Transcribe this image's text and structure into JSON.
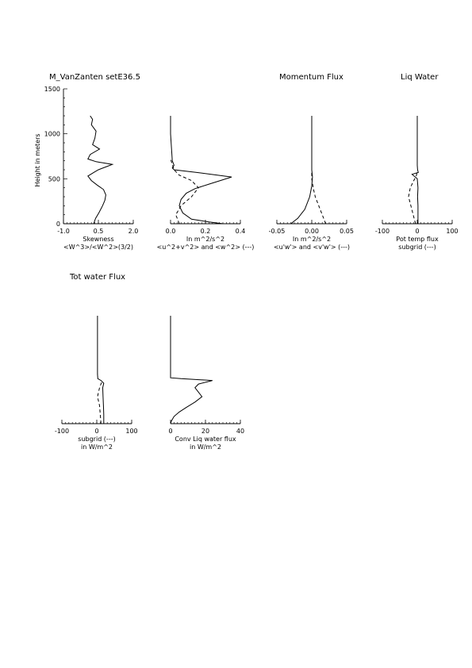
{
  "page": {
    "header_title": "M_VanZanten setE36.5"
  },
  "chart_data": [
    {
      "type": "line",
      "panel": "skewness",
      "title": "",
      "xlabel": "Skewness",
      "xlabel2": "<W^3>/<W^2>(3/2)",
      "ylabel": "Height in meters",
      "xlim": [
        -1.0,
        2.0
      ],
      "ylim": [
        0,
        1500
      ],
      "xticks": [
        "-1.0",
        "0.5",
        "2.0"
      ],
      "yticks": [
        "0",
        "500",
        "1000",
        "1500"
      ],
      "series": [
        {
          "style": "solid",
          "x": [
            0.3,
            0.38,
            0.52,
            0.68,
            0.78,
            0.82,
            0.72,
            0.45,
            0.2,
            0.05,
            0.3,
            0.5,
            0.9,
            1.1,
            0.4,
            0.05,
            0.15,
            0.55,
            0.25,
            0.35,
            0.4,
            0.2,
            0.25,
            0.15
          ],
          "y": [
            0,
            60,
            120,
            200,
            260,
            320,
            380,
            430,
            480,
            530,
            570,
            600,
            640,
            660,
            690,
            720,
            770,
            830,
            880,
            950,
            1030,
            1100,
            1160,
            1200
          ]
        }
      ]
    },
    {
      "type": "line",
      "panel": "velocity-variance",
      "title": "",
      "xlabel": "In m^2/s^2",
      "xlabel2": "<u^2+v^2> and <w^2> (---)",
      "xlim": [
        0.0,
        0.4
      ],
      "ylim": [
        0,
        1500
      ],
      "xticks": [
        "0.0",
        "0.2",
        "0.4"
      ],
      "series": [
        {
          "style": "solid",
          "x": [
            0.3,
            0.22,
            0.12,
            0.07,
            0.05,
            0.06,
            0.09,
            0.14,
            0.22,
            0.35,
            0.15,
            0.02,
            0.01,
            0.02,
            0.01,
            0.0,
            0.0
          ],
          "y": [
            0,
            20,
            50,
            120,
            200,
            270,
            340,
            390,
            440,
            520,
            570,
            600,
            620,
            650,
            700,
            1000,
            1200
          ]
        },
        {
          "style": "dashed",
          "x": [
            0.05,
            0.03,
            0.06,
            0.12,
            0.16,
            0.12,
            0.05,
            0.02,
            0.01,
            0.0
          ],
          "y": [
            0,
            100,
            200,
            300,
            400,
            480,
            540,
            600,
            660,
            720
          ]
        }
      ]
    },
    {
      "type": "line",
      "panel": "momentum-flux",
      "title": "Momentum Flux",
      "xlabel": "In m^2/s^2",
      "xlabel2": "<u'w'> and <v'w'> (---)",
      "xlim": [
        -0.05,
        0.05
      ],
      "ylim": [
        0,
        1500
      ],
      "xticks": [
        "-0.05",
        "0.00",
        "0.05"
      ],
      "series": [
        {
          "style": "solid",
          "x": [
            -0.03,
            -0.02,
            -0.01,
            -0.003,
            0.0,
            0.001,
            0.0,
            0.0
          ],
          "y": [
            0,
            60,
            160,
            300,
            420,
            520,
            600,
            1200
          ]
        },
        {
          "style": "dashed",
          "x": [
            0.02,
            0.015,
            0.01,
            0.005,
            0.002,
            0.0,
            0.0
          ],
          "y": [
            0,
            100,
            200,
            300,
            400,
            500,
            600
          ]
        }
      ]
    },
    {
      "type": "line",
      "panel": "liq-water",
      "title": "Liq Water",
      "xlabel": "Pot temp flux",
      "xlabel2": "subgrid (---)",
      "xlim": [
        -100,
        100
      ],
      "ylim": [
        0,
        1500
      ],
      "xticks": [
        "-100",
        "0",
        "100"
      ],
      "series": [
        {
          "style": "solid",
          "x": [
            2,
            2,
            2,
            1,
            2,
            0,
            -15,
            3,
            1,
            0,
            0,
            0
          ],
          "y": [
            0,
            100,
            200,
            300,
            400,
            500,
            550,
            570,
            600,
            650,
            800,
            1200
          ]
        },
        {
          "style": "dashed",
          "x": [
            -5,
            -15,
            -25,
            -20,
            -10,
            -3,
            0
          ],
          "y": [
            0,
            150,
            300,
            400,
            480,
            530,
            580
          ]
        }
      ]
    },
    {
      "type": "line",
      "panel": "tot-water-flux",
      "title": "Tot water Flux",
      "xlabel": "subgrid (---)",
      "xlabel2": "in W/m^2",
      "xlim": [
        -100,
        100
      ],
      "ylim": [
        0,
        1500
      ],
      "xticks": [
        "-100",
        "0",
        "100"
      ],
      "series": [
        {
          "style": "solid",
          "x": [
            20,
            20,
            19,
            18,
            17,
            20,
            12,
            3,
            2,
            2
          ],
          "y": [
            0,
            100,
            200,
            300,
            400,
            450,
            480,
            500,
            550,
            1200
          ]
        },
        {
          "style": "dashed",
          "x": [
            12,
            10,
            8,
            2,
            8,
            16
          ],
          "y": [
            0,
            100,
            200,
            300,
            400,
            480
          ]
        }
      ]
    },
    {
      "type": "line",
      "panel": "conv-liq-water-flux",
      "title": "",
      "xlabel": "Conv Liq water flux",
      "xlabel2": "in W/m^2",
      "xlim": [
        0,
        40
      ],
      "ylim": [
        0,
        1500
      ],
      "xticks": [
        "0",
        "20",
        "40"
      ],
      "series": [
        {
          "style": "solid",
          "x": [
            0,
            0.5,
            2,
            5,
            9,
            14,
            18,
            16,
            14,
            16,
            24,
            6,
            0,
            0
          ],
          "y": [
            0,
            30,
            80,
            130,
            180,
            240,
            300,
            350,
            400,
            440,
            480,
            500,
            510,
            1200
          ]
        }
      ]
    }
  ]
}
